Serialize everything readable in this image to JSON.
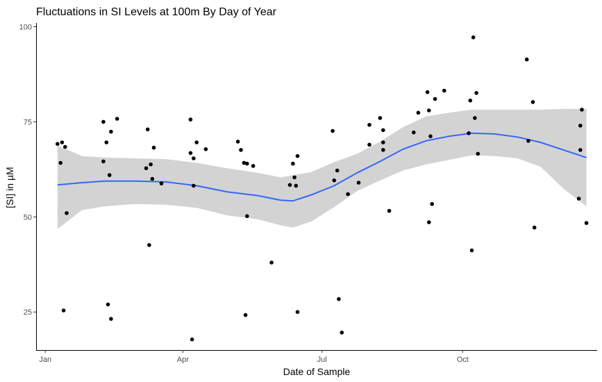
{
  "chart_data": {
    "type": "scatter",
    "title": "Fluctuations in SI Levels at 100m By Day of Year",
    "xlabel": "Date of Sample",
    "ylabel": "[SI] in µM",
    "x_unit": "day_of_year",
    "xlim": [
      -5,
      362
    ],
    "ylim": [
      15,
      101
    ],
    "x_ticks": [
      {
        "value": 1,
        "label": "Jan"
      },
      {
        "value": 91,
        "label": "Apr"
      },
      {
        "value": 182,
        "label": "Jul"
      },
      {
        "value": 274,
        "label": "Oct"
      }
    ],
    "y_ticks": [
      {
        "value": 25,
        "label": "25"
      },
      {
        "value": 50,
        "label": "50"
      },
      {
        "value": 75,
        "label": "75"
      },
      {
        "value": 100,
        "label": "100"
      }
    ],
    "grid": false,
    "colors": {
      "points": "#000000",
      "smooth_line": "#3366FF",
      "confidence_band": "#D3D3D3",
      "axis": "#000000"
    },
    "points": [
      {
        "x": 9,
        "y": 69.2
      },
      {
        "x": 11,
        "y": 64.2
      },
      {
        "x": 12,
        "y": 69.6
      },
      {
        "x": 13,
        "y": 25.4
      },
      {
        "x": 14,
        "y": 68.4
      },
      {
        "x": 15,
        "y": 51.0
      },
      {
        "x": 39,
        "y": 64.6
      },
      {
        "x": 39,
        "y": 75.0
      },
      {
        "x": 41,
        "y": 69.6
      },
      {
        "x": 42,
        "y": 27.0
      },
      {
        "x": 43,
        "y": 61.0
      },
      {
        "x": 44,
        "y": 23.2
      },
      {
        "x": 44,
        "y": 72.4
      },
      {
        "x": 48,
        "y": 75.8
      },
      {
        "x": 67,
        "y": 62.8
      },
      {
        "x": 68,
        "y": 73.0
      },
      {
        "x": 69,
        "y": 42.6
      },
      {
        "x": 70,
        "y": 63.8
      },
      {
        "x": 71,
        "y": 60.0
      },
      {
        "x": 72,
        "y": 68.2
      },
      {
        "x": 77,
        "y": 58.8
      },
      {
        "x": 96,
        "y": 66.8
      },
      {
        "x": 96,
        "y": 75.6
      },
      {
        "x": 97,
        "y": 17.8
      },
      {
        "x": 98,
        "y": 65.4
      },
      {
        "x": 98,
        "y": 58.2
      },
      {
        "x": 100,
        "y": 69.6
      },
      {
        "x": 106,
        "y": 67.8
      },
      {
        "x": 127,
        "y": 69.8
      },
      {
        "x": 129,
        "y": 67.6
      },
      {
        "x": 131,
        "y": 64.2
      },
      {
        "x": 132,
        "y": 24.2
      },
      {
        "x": 133,
        "y": 64.0
      },
      {
        "x": 133,
        "y": 50.2
      },
      {
        "x": 137,
        "y": 63.4
      },
      {
        "x": 149,
        "y": 38.0
      },
      {
        "x": 161,
        "y": 58.4
      },
      {
        "x": 163,
        "y": 64.0
      },
      {
        "x": 164,
        "y": 60.4
      },
      {
        "x": 165,
        "y": 58.2
      },
      {
        "x": 166,
        "y": 66.0
      },
      {
        "x": 166,
        "y": 25.0
      },
      {
        "x": 189,
        "y": 72.6
      },
      {
        "x": 190,
        "y": 59.6
      },
      {
        "x": 192,
        "y": 62.2
      },
      {
        "x": 193,
        "y": 28.4
      },
      {
        "x": 195,
        "y": 19.6
      },
      {
        "x": 199,
        "y": 56.0
      },
      {
        "x": 206,
        "y": 59.0
      },
      {
        "x": 213,
        "y": 74.2
      },
      {
        "x": 213,
        "y": 69.0
      },
      {
        "x": 220,
        "y": 76.0
      },
      {
        "x": 222,
        "y": 72.8
      },
      {
        "x": 222,
        "y": 67.6
      },
      {
        "x": 222,
        "y": 69.6
      },
      {
        "x": 226,
        "y": 51.6
      },
      {
        "x": 242,
        "y": 72.2
      },
      {
        "x": 245,
        "y": 77.4
      },
      {
        "x": 251,
        "y": 82.8
      },
      {
        "x": 252,
        "y": 48.6
      },
      {
        "x": 252,
        "y": 78.0
      },
      {
        "x": 253,
        "y": 71.2
      },
      {
        "x": 254,
        "y": 53.4
      },
      {
        "x": 256,
        "y": 81.0
      },
      {
        "x": 262,
        "y": 83.2
      },
      {
        "x": 278,
        "y": 72.0
      },
      {
        "x": 279,
        "y": 80.6
      },
      {
        "x": 280,
        "y": 41.2
      },
      {
        "x": 281,
        "y": 97.2
      },
      {
        "x": 282,
        "y": 76.0
      },
      {
        "x": 283,
        "y": 82.6
      },
      {
        "x": 284,
        "y": 66.6
      },
      {
        "x": 316,
        "y": 91.4
      },
      {
        "x": 317,
        "y": 70.0
      },
      {
        "x": 320,
        "y": 80.2
      },
      {
        "x": 321,
        "y": 47.2
      },
      {
        "x": 350,
        "y": 54.8
      },
      {
        "x": 351,
        "y": 67.6
      },
      {
        "x": 351,
        "y": 74.0
      },
      {
        "x": 352,
        "y": 78.2
      },
      {
        "x": 355,
        "y": 48.4
      }
    ],
    "smooth": [
      {
        "x": 9,
        "y": 58.4,
        "lo": 46.8,
        "hi": 68.8
      },
      {
        "x": 25,
        "y": 59.0,
        "lo": 51.8,
        "hi": 66.0
      },
      {
        "x": 40,
        "y": 59.4,
        "lo": 52.8,
        "hi": 65.6
      },
      {
        "x": 60,
        "y": 59.4,
        "lo": 53.4,
        "hi": 65.4
      },
      {
        "x": 80,
        "y": 59.2,
        "lo": 53.2,
        "hi": 65.2
      },
      {
        "x": 100,
        "y": 58.2,
        "lo": 52.4,
        "hi": 64.2
      },
      {
        "x": 120,
        "y": 56.6,
        "lo": 50.4,
        "hi": 62.8
      },
      {
        "x": 140,
        "y": 55.6,
        "lo": 49.4,
        "hi": 61.6
      },
      {
        "x": 155,
        "y": 54.4,
        "lo": 47.8,
        "hi": 60.4
      },
      {
        "x": 163,
        "y": 54.2,
        "lo": 47.2,
        "hi": 61.0
      },
      {
        "x": 175,
        "y": 55.8,
        "lo": 48.8,
        "hi": 61.8
      },
      {
        "x": 190,
        "y": 58.2,
        "lo": 52.6,
        "hi": 64.4
      },
      {
        "x": 205,
        "y": 61.6,
        "lo": 56.8,
        "hi": 66.6
      },
      {
        "x": 220,
        "y": 64.6,
        "lo": 59.6,
        "hi": 69.8
      },
      {
        "x": 235,
        "y": 67.8,
        "lo": 62.2,
        "hi": 73.6
      },
      {
        "x": 250,
        "y": 70.0,
        "lo": 63.8,
        "hi": 76.4
      },
      {
        "x": 265,
        "y": 71.2,
        "lo": 65.0,
        "hi": 77.4
      },
      {
        "x": 280,
        "y": 72.0,
        "lo": 66.2,
        "hi": 78.2
      },
      {
        "x": 295,
        "y": 71.8,
        "lo": 66.0,
        "hi": 78.2
      },
      {
        "x": 310,
        "y": 71.0,
        "lo": 65.4,
        "hi": 78.2
      },
      {
        "x": 325,
        "y": 69.6,
        "lo": 63.2,
        "hi": 78.2
      },
      {
        "x": 340,
        "y": 67.6,
        "lo": 57.4,
        "hi": 78.4
      },
      {
        "x": 355,
        "y": 65.6,
        "lo": 52.8,
        "hi": 78.4
      }
    ]
  }
}
